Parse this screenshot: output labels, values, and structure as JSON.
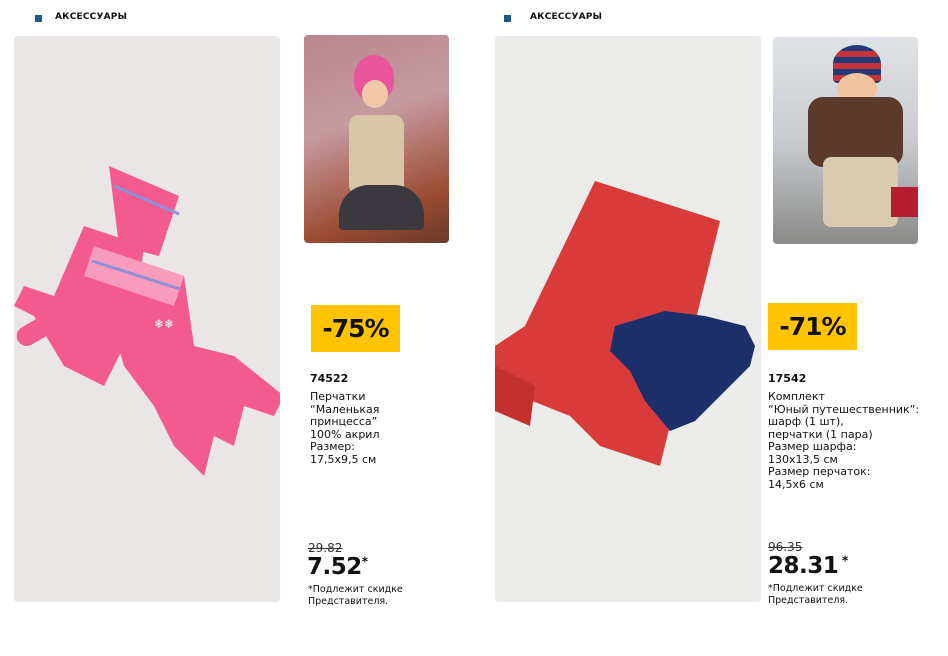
{
  "pages": [
    {
      "section": "АКСЕССУАРЫ",
      "discount": "-75%",
      "code": "74522",
      "description": "Перчатки\n“Маленькая\nпринцесса”\n100% акрил\nРазмер:\n17,5x9,5 см",
      "old_price": "29.82",
      "price": "7.52",
      "price_mark": "*",
      "note": "*Подлежит скидке\n  Представителя."
    },
    {
      "section": "АКСЕССУАРЫ",
      "discount": "-71%",
      "code": "17542",
      "description": "Комплект\n“Юный путешественник”:\nшарф (1 шт),\nперчатки (1 пара)\nРазмер шарфа:\n130x13,5 см\nРазмер перчаток:\n14,5x6 см",
      "old_price": "96.35",
      "price": "28.31",
      "price_mark": " *",
      "note": "*Подлежит скидке\n  Представителя."
    }
  ],
  "colors": {
    "badge": "#ffc400",
    "section_marker": "#1d5a8a",
    "gloves_pink": "#f0508a",
    "scarf_red": "#d93a3a",
    "gloves_navy": "#1c2f6b"
  }
}
